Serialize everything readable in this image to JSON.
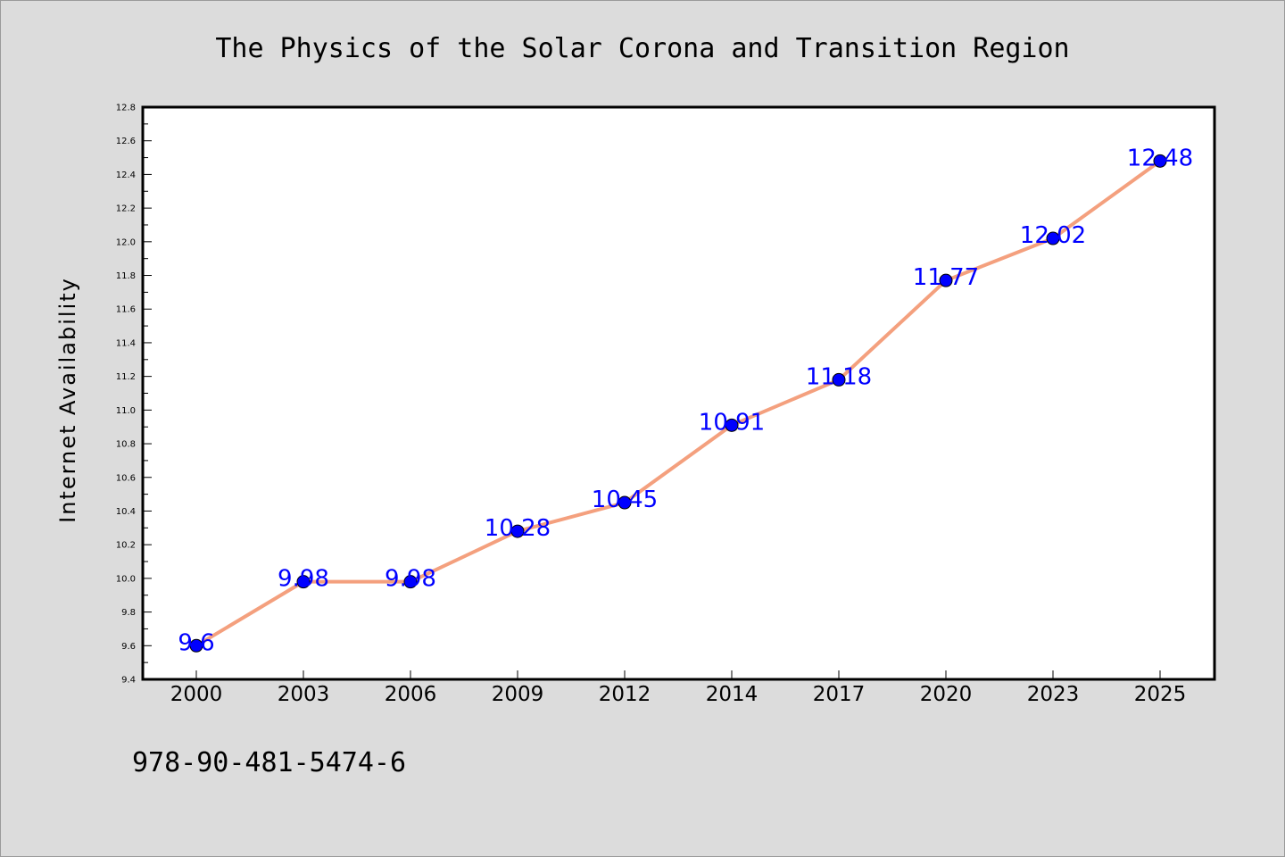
{
  "chart_data": {
    "type": "line",
    "title": "The Physics of the Solar Corona and Transition Region",
    "ylabel": "Internet Availability",
    "xlabel": "",
    "categories": [
      "2000",
      "2003",
      "2006",
      "2009",
      "2012",
      "2014",
      "2017",
      "2020",
      "2023",
      "2025"
    ],
    "values": [
      9.6,
      9.98,
      9.98,
      10.28,
      10.45,
      10.91,
      11.18,
      11.77,
      12.02,
      12.48
    ],
    "point_labels": [
      "9.6",
      "9.98",
      "9.98",
      "10.28",
      "10.45",
      "10.91",
      "11.18",
      "11.77",
      "12.02",
      "12.48"
    ],
    "ylim": [
      9.4,
      12.8
    ],
    "yticks": [
      "9.4",
      "9.6",
      "9.8",
      "10.0",
      "10.2",
      "10.4",
      "10.6",
      "10.8",
      "11.0",
      "11.2",
      "11.4",
      "11.6",
      "11.8",
      "12.0",
      "12.2",
      "12.4",
      "12.6",
      "12.8"
    ],
    "grid": false,
    "line_color": "#f4a07e",
    "marker_color": "#0000ff",
    "label_color": "#0000ff"
  },
  "footer": {
    "isbn": "978-90-481-5474-6"
  }
}
